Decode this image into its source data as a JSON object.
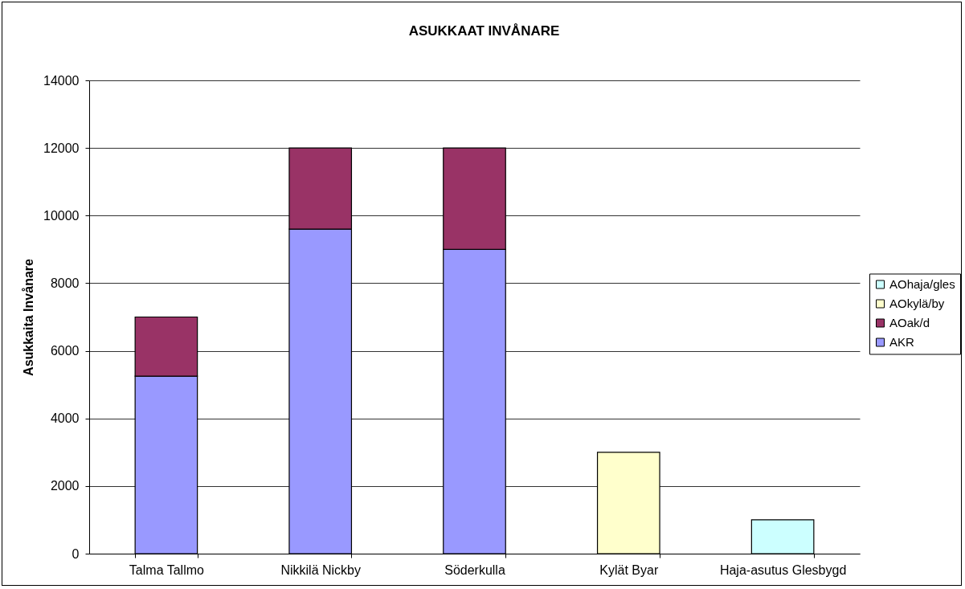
{
  "chart_data": {
    "type": "bar",
    "title": "ASUKKAAT INVÅNARE",
    "ylabel": "Asukkaita Invånare",
    "categories": [
      "Talma Tallmo",
      "Nikkilä Nickby",
      "Söderkulla",
      "Kylät Byar",
      "Haja-asutus Glesbygd"
    ],
    "series": [
      {
        "name": "AKR",
        "color": "#9999ff",
        "values": [
          5250,
          9600,
          9000,
          null,
          null
        ]
      },
      {
        "name": "AOak/d",
        "color": "#993366",
        "values": [
          1750,
          2400,
          3000,
          null,
          null
        ]
      },
      {
        "name": "AOkylä/by",
        "color": "#ffffcc",
        "values": [
          null,
          null,
          null,
          3000,
          null
        ]
      },
      {
        "name": "AOhaja/gles",
        "color": "#ccffff",
        "values": [
          null,
          null,
          null,
          null,
          1000
        ]
      }
    ],
    "stacked": true,
    "ylim": [
      0,
      14000
    ],
    "yticks": [
      0,
      2000,
      4000,
      6000,
      8000,
      10000,
      12000,
      14000
    ],
    "grid": "y",
    "legend": "right"
  }
}
